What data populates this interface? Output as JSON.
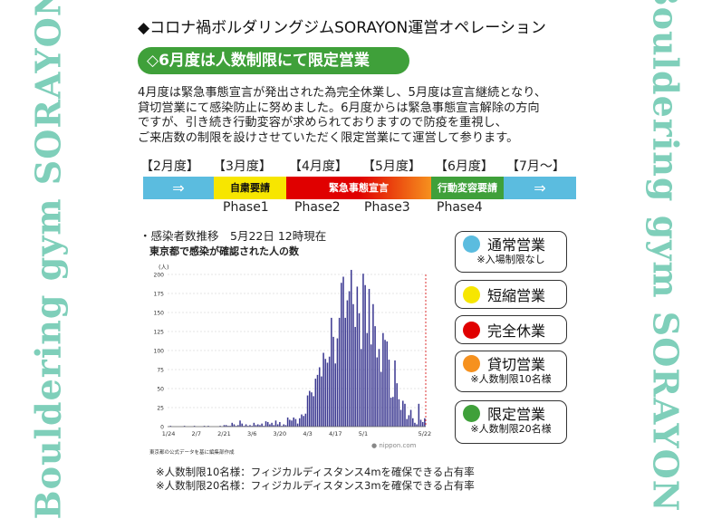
{
  "side_left": "Bouldering gym SORAYON",
  "side_right": "Bouldering gym SORAYON",
  "title": "◆コロナ禍ボルダリングジムSORAYON運営オペレーション",
  "heading": "◇6月度は人数制限にて限定営業",
  "paragraph": [
    "4月度は緊急事態宣言が発出された為完全休業し、5月度は宣言継続となり、",
    "貸切営業にて感染防止に努めました。6月度からは緊急事態宣言解除の方向",
    "ですが、引き続き行動変容が求められておりますので防疫を重視し、",
    "ご来店数の制限を設けさせていただく限定営業にて運営して参ります。"
  ],
  "months": [
    "【2月度】",
    "【3月度】",
    "【4月度】",
    "【5月度】",
    "【6月度】",
    "【7月～】"
  ],
  "timeline": {
    "arrow": "⇒",
    "seg_jishuku": "自粛要請",
    "seg_kinkyu": "緊急事態宣言",
    "seg_koudou": "行動変容要請",
    "colors": {
      "blue": "#5bbcdf",
      "yellow": "#f7e600",
      "red": "#e00000",
      "orange": "#f6911e",
      "green": "#3fa03a"
    }
  },
  "phases": [
    "Phase1",
    "Phase2",
    "Phase3",
    "Phase4"
  ],
  "chart_subtitle": "・感染者数推移　5月22日 12時現在",
  "chart_data": {
    "type": "bar",
    "title": "東京都で感染が確認された人の数",
    "ylabel": "(人)",
    "ylim": [
      0,
      200
    ],
    "yticks": [
      0,
      25,
      50,
      75,
      100,
      125,
      150,
      175,
      200
    ],
    "x_tick_labels": [
      "1/24",
      "2/7",
      "2/21",
      "3/6",
      "3/20",
      "4/3",
      "4/17",
      "5/1",
      "5/22"
    ],
    "start_date": "1/24",
    "source_note": "東京都の公式データを基に編集部作成",
    "credit": "● nippon.com",
    "values": [
      0,
      1,
      0,
      0,
      0,
      0,
      0,
      0,
      1,
      0,
      0,
      0,
      0,
      1,
      0,
      0,
      0,
      0,
      1,
      0,
      1,
      0,
      0,
      0,
      0,
      0,
      1,
      0,
      2,
      2,
      1,
      1,
      5,
      3,
      1,
      2,
      8,
      4,
      1,
      3,
      1,
      2,
      1,
      5,
      2,
      3,
      2,
      4,
      1,
      7,
      6,
      3,
      5,
      2,
      8,
      3,
      6,
      1,
      3,
      2,
      12,
      9,
      8,
      12,
      10,
      4,
      11,
      16,
      14,
      17,
      41,
      47,
      45,
      40,
      63,
      68,
      78,
      66,
      97,
      89,
      84,
      92,
      143,
      118,
      83,
      116,
      143,
      189,
      197,
      143,
      166,
      178,
      206,
      161,
      131,
      184,
      149,
      102,
      201,
      186,
      123,
      181,
      108,
      161,
      132,
      91,
      102,
      72,
      123,
      114,
      112,
      88,
      38,
      39,
      87,
      57,
      36,
      22,
      34,
      30,
      10,
      15,
      22,
      11,
      5,
      3,
      30,
      9,
      6,
      11
    ]
  },
  "legend": [
    {
      "label": "通常営業",
      "note": "※入場制限なし",
      "color": "#5bbcdf"
    },
    {
      "label": "短縮営業",
      "note": "",
      "color": "#f7e600"
    },
    {
      "label": "完全休業",
      "note": "",
      "color": "#e00000"
    },
    {
      "label": "貸切営業",
      "note": "※人数制限10名様",
      "color": "#f6911e"
    },
    {
      "label": "限定営業",
      "note": "※人数制限20名様",
      "color": "#3fa03a"
    }
  ],
  "footnotes": [
    "※人数制限10名様：フィジカルディスタンス4mを確保できる占有率",
    "※人数制限20名様：フィジカルディスタンス3mを確保できる占有率"
  ]
}
